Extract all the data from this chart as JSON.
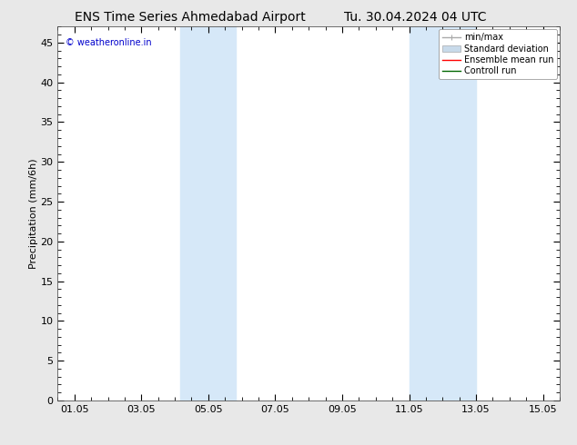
{
  "title_left": "ENS Time Series Ahmedabad Airport",
  "title_right": "Tu. 30.04.2024 04 UTC",
  "ylabel": "Precipitation (mm/6h)",
  "watermark": "© weatheronline.in",
  "watermark_color": "#0000cc",
  "bg_color": "#e8e8e8",
  "plot_bg_color": "#ffffff",
  "shaded_regions": [
    {
      "xstart": 4.17,
      "xend": 5.83,
      "color": "#d6e8f8"
    },
    {
      "xstart": 11.0,
      "xend": 13.0,
      "color": "#d6e8f8"
    }
  ],
  "x_ticks": [
    1,
    3,
    5,
    7,
    9,
    11,
    13,
    15
  ],
  "x_tick_labels": [
    "01.05",
    "03.05",
    "05.05",
    "07.05",
    "09.05",
    "11.05",
    "13.05",
    "15.05"
  ],
  "xlim": [
    0.5,
    15.5
  ],
  "ylim": [
    0,
    47
  ],
  "y_ticks": [
    0,
    5,
    10,
    15,
    20,
    25,
    30,
    35,
    40,
    45
  ],
  "legend_items": [
    {
      "label": "min/max",
      "color": "#aaaaaa",
      "lw": 1.0
    },
    {
      "label": "Standard deviation",
      "color": "#c8daea",
      "lw": 8
    },
    {
      "label": "Ensemble mean run",
      "color": "#ff0000",
      "lw": 1.0
    },
    {
      "label": "Controll run",
      "color": "#006600",
      "lw": 1.0
    }
  ],
  "title_fontsize": 10,
  "tick_fontsize": 8,
  "ylabel_fontsize": 8,
  "legend_fontsize": 7,
  "watermark_fontsize": 7
}
